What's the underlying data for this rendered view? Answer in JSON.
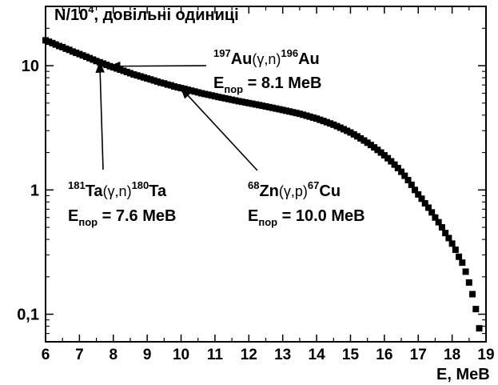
{
  "chart_data": {
    "type": "scatter",
    "ylabel": {
      "prefix": "N/10",
      "sup": "4",
      "suffix": ", довільні одиниці"
    },
    "xlabel": "E, MeB",
    "xlim": [
      6,
      19
    ],
    "ylim": [
      0.06,
      30
    ],
    "yscale": "log",
    "x_ticks": [
      6,
      7,
      8,
      9,
      10,
      11,
      12,
      13,
      14,
      15,
      16,
      17,
      18,
      19
    ],
    "x_tick_labels": [
      "6",
      "7",
      "8",
      "9",
      "10",
      "11",
      "12",
      "13",
      "14",
      "15",
      "16",
      "17",
      "18",
      "19"
    ],
    "y_ticks": [
      0.1,
      1,
      10
    ],
    "y_tick_labels": [
      "0,1",
      "1",
      "10"
    ],
    "grid": false,
    "marker_color": "#000000",
    "series": [
      {
        "points": [
          [
            6.0,
            16.0
          ],
          [
            6.1,
            15.6
          ],
          [
            6.2,
            15.2
          ],
          [
            6.3,
            14.8
          ],
          [
            6.4,
            14.4
          ],
          [
            6.5,
            14.1
          ],
          [
            6.6,
            13.7
          ],
          [
            6.7,
            13.4
          ],
          [
            6.8,
            13.0
          ],
          [
            6.9,
            12.7
          ],
          [
            7.0,
            12.4
          ],
          [
            7.1,
            12.1
          ],
          [
            7.2,
            11.8
          ],
          [
            7.3,
            11.5
          ],
          [
            7.4,
            11.2
          ],
          [
            7.5,
            10.9
          ],
          [
            7.6,
            10.65
          ],
          [
            7.7,
            10.4
          ],
          [
            7.8,
            10.15
          ],
          [
            7.9,
            9.9
          ],
          [
            8.0,
            9.7
          ],
          [
            8.1,
            9.5
          ],
          [
            8.2,
            9.3
          ],
          [
            8.3,
            9.1
          ],
          [
            8.4,
            8.9
          ],
          [
            8.5,
            8.7
          ],
          [
            8.6,
            8.5
          ],
          [
            8.7,
            8.35
          ],
          [
            8.8,
            8.2
          ],
          [
            8.9,
            8.05
          ],
          [
            9.0,
            7.9
          ],
          [
            9.1,
            7.75
          ],
          [
            9.2,
            7.6
          ],
          [
            9.3,
            7.45
          ],
          [
            9.4,
            7.3
          ],
          [
            9.5,
            7.2
          ],
          [
            9.6,
            7.05
          ],
          [
            9.7,
            6.95
          ],
          [
            9.8,
            6.8
          ],
          [
            9.9,
            6.7
          ],
          [
            10.0,
            6.6
          ],
          [
            10.1,
            6.5
          ],
          [
            10.2,
            6.4
          ],
          [
            10.3,
            6.3
          ],
          [
            10.4,
            6.2
          ],
          [
            10.5,
            6.1
          ],
          [
            10.6,
            6.0
          ],
          [
            10.7,
            5.92
          ],
          [
            10.8,
            5.84
          ],
          [
            10.9,
            5.76
          ],
          [
            11.0,
            5.68
          ],
          [
            11.1,
            5.6
          ],
          [
            11.2,
            5.53
          ],
          [
            11.3,
            5.46
          ],
          [
            11.4,
            5.39
          ],
          [
            11.5,
            5.32
          ],
          [
            11.6,
            5.25
          ],
          [
            11.7,
            5.18
          ],
          [
            11.8,
            5.12
          ],
          [
            11.9,
            5.06
          ],
          [
            12.0,
            5.0
          ],
          [
            12.1,
            4.94
          ],
          [
            12.2,
            4.88
          ],
          [
            12.3,
            4.82
          ],
          [
            12.4,
            4.76
          ],
          [
            12.5,
            4.7
          ],
          [
            12.6,
            4.64
          ],
          [
            12.7,
            4.58
          ],
          [
            12.8,
            4.52
          ],
          [
            12.9,
            4.46
          ],
          [
            13.0,
            4.4
          ],
          [
            13.1,
            4.34
          ],
          [
            13.2,
            4.28
          ],
          [
            13.3,
            4.22
          ],
          [
            13.4,
            4.16
          ],
          [
            13.5,
            4.1
          ],
          [
            13.6,
            4.03
          ],
          [
            13.7,
            3.96
          ],
          [
            13.8,
            3.89
          ],
          [
            13.9,
            3.82
          ],
          [
            14.0,
            3.75
          ],
          [
            14.1,
            3.67
          ],
          [
            14.2,
            3.59
          ],
          [
            14.3,
            3.51
          ],
          [
            14.4,
            3.43
          ],
          [
            14.5,
            3.35
          ],
          [
            14.6,
            3.26
          ],
          [
            14.7,
            3.17
          ],
          [
            14.8,
            3.08
          ],
          [
            14.9,
            2.99
          ],
          [
            15.0,
            2.9
          ],
          [
            15.1,
            2.8
          ],
          [
            15.2,
            2.7
          ],
          [
            15.3,
            2.6
          ],
          [
            15.4,
            2.5
          ],
          [
            15.5,
            2.4
          ],
          [
            15.6,
            2.3
          ],
          [
            15.7,
            2.2
          ],
          [
            15.8,
            2.1
          ],
          [
            15.9,
            2.0
          ],
          [
            16.0,
            1.9
          ],
          [
            16.1,
            1.8
          ],
          [
            16.2,
            1.7
          ],
          [
            16.3,
            1.6
          ],
          [
            16.4,
            1.5
          ],
          [
            16.5,
            1.4
          ],
          [
            16.6,
            1.3
          ],
          [
            16.7,
            1.2
          ],
          [
            16.8,
            1.1
          ],
          [
            16.9,
            1.0
          ],
          [
            17.0,
            0.92
          ],
          [
            17.1,
            0.85
          ],
          [
            17.2,
            0.78
          ],
          [
            17.3,
            0.72
          ],
          [
            17.4,
            0.66
          ],
          [
            17.5,
            0.6
          ],
          [
            17.6,
            0.55
          ],
          [
            17.7,
            0.5
          ],
          [
            17.8,
            0.45
          ],
          [
            17.9,
            0.41
          ],
          [
            18.0,
            0.37
          ],
          [
            18.1,
            0.33
          ],
          [
            18.2,
            0.29
          ],
          [
            18.3,
            0.26
          ],
          [
            18.4,
            0.22
          ],
          [
            18.5,
            0.18
          ],
          [
            18.6,
            0.145
          ],
          [
            18.7,
            0.11
          ],
          [
            18.8,
            0.077
          ]
        ]
      }
    ],
    "annotations": [
      {
        "parts": [
          [
            "197",
            "sup"
          ],
          [
            "Au",
            "normal"
          ],
          [
            "(γ,n)",
            "paren"
          ],
          [
            "196",
            "sup"
          ],
          [
            "Au",
            "normal"
          ]
        ],
        "energy": [
          "E",
          "пор",
          " = 8.1 MeB"
        ],
        "target": [
          7.9,
          9.9
        ]
      },
      {
        "parts": [
          [
            "181",
            "sup"
          ],
          [
            "Ta",
            "normal"
          ],
          [
            "(γ,n)",
            "paren"
          ],
          [
            "180",
            "sup"
          ],
          [
            "Ta",
            "normal"
          ]
        ],
        "energy": [
          "E",
          "пор",
          " = 7.6 MeB"
        ],
        "target": [
          7.6,
          10.65
        ]
      },
      {
        "parts": [
          [
            "68",
            "sup"
          ],
          [
            "Zn",
            "normal"
          ],
          [
            "(γ,p)",
            "paren"
          ],
          [
            "67",
            "sup"
          ],
          [
            "Cu",
            "normal"
          ]
        ],
        "energy": [
          "E",
          "пор",
          " = 10.0 MeB"
        ],
        "target": [
          10.0,
          6.6
        ]
      }
    ]
  }
}
